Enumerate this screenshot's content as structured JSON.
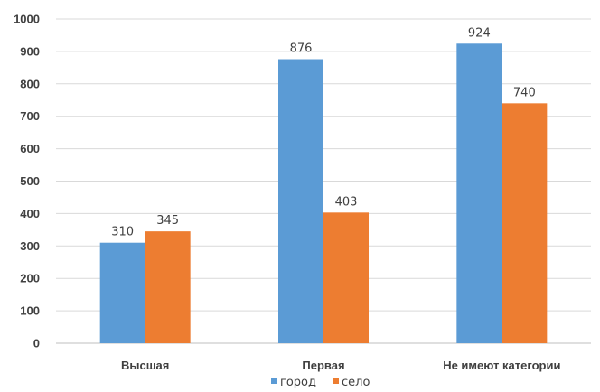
{
  "chart_data": {
    "type": "bar",
    "title": "",
    "xlabel": "",
    "ylabel": "",
    "categories": [
      "Высшая",
      "Первая",
      "Не имеют категории"
    ],
    "series": [
      {
        "name": "город",
        "values": [
          310,
          876,
          924
        ],
        "color": "#5b9bd5"
      },
      {
        "name": "село",
        "values": [
          345,
          403,
          740
        ],
        "color": "#ed7d31"
      }
    ],
    "ylim": [
      0,
      1000
    ],
    "yticks": [
      0,
      100,
      200,
      300,
      400,
      500,
      600,
      700,
      800,
      900,
      1000
    ],
    "grid": true,
    "legend_position": "bottom"
  }
}
